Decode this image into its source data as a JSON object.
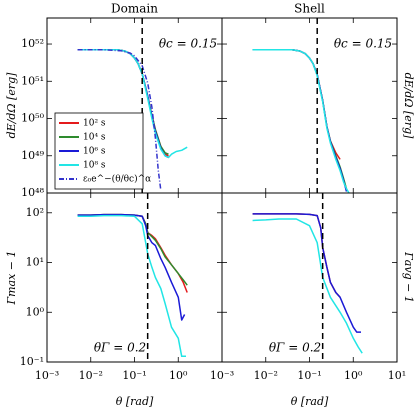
{
  "chart_data": [
    {
      "type": "line",
      "title": "Domain",
      "ylabel": "dE/dΩ [erg]",
      "log_x": true,
      "log_y": true,
      "xlim": [
        0.001,
        10
      ],
      "ylim": [
        1e+48,
        5e+52
      ],
      "xticks": [
        0.001,
        0.01,
        0.1,
        1,
        10
      ],
      "yticks": [
        {
          "value": 1e+48,
          "label": "10⁴⁸"
        },
        {
          "value": 1e+49,
          "label": "10⁴⁹"
        },
        {
          "value": 1e+50,
          "label": "10⁵⁰"
        },
        {
          "value": 1e+51,
          "label": "10⁵¹"
        },
        {
          "value": 1e+52,
          "label": "10⁵²"
        }
      ],
      "vline": 0.15,
      "annotation": "θc = 0.15",
      "legend": "lower left",
      "series": [
        {
          "name": "10² s",
          "color": "#e41a1c",
          "x": [
            0.005,
            0.01,
            0.02,
            0.04,
            0.06,
            0.08,
            0.1,
            0.12,
            0.15,
            0.2,
            0.25,
            0.3,
            0.4,
            0.5,
            0.6
          ],
          "values": [
            7e+51,
            7e+51,
            7e+51,
            7e+51,
            6.5e+51,
            5.5e+51,
            4.2e+51,
            3e+51,
            1.6e+51,
            4e+50,
            1.2e+50,
            5e+49,
            1.8e+49,
            1.1e+49,
            1e+49
          ]
        },
        {
          "name": "10⁴ s",
          "color": "#2e8b2e",
          "x": [
            0.005,
            0.01,
            0.02,
            0.04,
            0.06,
            0.08,
            0.1,
            0.12,
            0.15,
            0.2,
            0.25,
            0.3,
            0.4,
            0.5,
            0.6
          ],
          "values": [
            7e+51,
            7e+51,
            7e+51,
            7e+51,
            6.5e+51,
            5.5e+51,
            4.2e+51,
            3e+51,
            1.6e+51,
            4e+50,
            1.2e+50,
            5e+49,
            1.8e+49,
            1.2e+49,
            1.1e+49
          ]
        },
        {
          "name": "10⁶ s",
          "color": "#1a1ad6",
          "x": [
            0.005,
            0.01,
            0.02,
            0.04,
            0.06,
            0.08,
            0.1,
            0.12,
            0.15,
            0.2,
            0.25,
            0.3,
            0.4,
            0.5,
            0.6
          ],
          "values": [
            7e+51,
            7e+51,
            7e+51,
            7e+51,
            6.5e+51,
            5.5e+51,
            4.2e+51,
            3e+51,
            1.6e+51,
            4e+50,
            1.1e+50,
            4.5e+49,
            1.6e+49,
            1e+49,
            9e+48
          ]
        },
        {
          "name": "10⁸ s",
          "color": "#22e5e5",
          "x": [
            0.005,
            0.01,
            0.02,
            0.04,
            0.06,
            0.08,
            0.1,
            0.12,
            0.15,
            0.2,
            0.25,
            0.3,
            0.4,
            0.5,
            0.6,
            0.7,
            0.9,
            1.2,
            1.6
          ],
          "values": [
            7e+51,
            7e+51,
            7e+51,
            7e+51,
            6.5e+51,
            5.5e+51,
            4.2e+51,
            3e+51,
            1.6e+51,
            3.5e+50,
            1e+50,
            4e+49,
            1.5e+49,
            1e+49,
            9e+48,
            1.1e+49,
            1.3e+49,
            1.4e+49,
            1.7e+49
          ]
        },
        {
          "name": "ε₀e^−(θ/θc)^α",
          "color": "#3333cc",
          "style": "dashdot",
          "x": [
            0.005,
            0.02,
            0.05,
            0.08,
            0.1,
            0.15,
            0.2,
            0.25,
            0.3,
            0.35,
            0.4
          ],
          "values": [
            7e+51,
            7e+51,
            6.6e+51,
            5.7e+51,
            4.8e+51,
            2.6e+51,
            9e+50,
            2e+50,
            3e+49,
            4e+48,
            1.2e+48
          ]
        }
      ]
    },
    {
      "type": "line",
      "title": "Shell",
      "ylabel": "dE/dΩ [erg]",
      "log_x": true,
      "log_y": true,
      "xlim": [
        0.001,
        10
      ],
      "ylim": [
        1e+48,
        5e+52
      ],
      "xticks": [
        0.001,
        0.01,
        0.1,
        1,
        10
      ],
      "yticks": [
        1e+48,
        1e+49,
        1e+50,
        1e+51,
        1e+52
      ],
      "vline": 0.15,
      "annotation": "θc = 0.15",
      "series": [
        {
          "color": "#e41a1c",
          "x": [
            0.005,
            0.01,
            0.02,
            0.04,
            0.06,
            0.08,
            0.1,
            0.12,
            0.15,
            0.2,
            0.25,
            0.3,
            0.4,
            0.5
          ],
          "values": [
            7e+51,
            7e+51,
            7e+51,
            7e+51,
            6.5e+51,
            5.5e+51,
            4.2e+51,
            3e+51,
            1.5e+51,
            3e+50,
            6e+49,
            2.5e+49,
            1.2e+49,
            8e+48
          ]
        },
        {
          "color": "#2e8b2e",
          "x": [
            0.005,
            0.01,
            0.02,
            0.04,
            0.06,
            0.08,
            0.1,
            0.12,
            0.15,
            0.2,
            0.25,
            0.3,
            0.4,
            0.5,
            0.6,
            0.7
          ],
          "values": [
            7e+51,
            7e+51,
            7e+51,
            7e+51,
            6.5e+51,
            5.5e+51,
            4.2e+51,
            3e+51,
            1.5e+51,
            3e+50,
            6e+49,
            2.5e+49,
            1e+49,
            5e+48,
            2.5e+48,
            1.3e+48
          ]
        },
        {
          "color": "#1a1ad6",
          "x": [
            0.005,
            0.01,
            0.02,
            0.04,
            0.06,
            0.08,
            0.1,
            0.12,
            0.15,
            0.2,
            0.25,
            0.3,
            0.4,
            0.5,
            0.6,
            0.7
          ],
          "values": [
            7e+51,
            7e+51,
            7e+51,
            7e+51,
            6.5e+51,
            5.5e+51,
            4.2e+51,
            3e+51,
            1.5e+51,
            3e+50,
            6e+49,
            2.4e+49,
            9e+48,
            4.5e+48,
            2.2e+48,
            1.1e+48
          ]
        },
        {
          "color": "#22e5e5",
          "x": [
            0.005,
            0.01,
            0.02,
            0.04,
            0.06,
            0.08,
            0.1,
            0.12,
            0.15,
            0.2,
            0.25,
            0.3,
            0.4,
            0.5,
            0.6,
            0.7,
            0.8
          ],
          "values": [
            7e+51,
            7e+51,
            7e+51,
            7e+51,
            6.5e+51,
            5.5e+51,
            4.2e+51,
            3e+51,
            1.4e+51,
            2.8e+50,
            5.5e+49,
            2.2e+49,
            8e+48,
            4e+48,
            2e+48,
            1.3e+48,
            1e+48
          ]
        }
      ]
    },
    {
      "type": "line",
      "ylabel": "Γmax − 1",
      "xlabel": "θ [rad]",
      "log_x": true,
      "log_y": true,
      "xlim": [
        0.001,
        10
      ],
      "ylim": [
        0.1,
        250
      ],
      "xticks": [
        {
          "value": 0.001,
          "label": "10⁻³"
        },
        {
          "value": 0.01,
          "label": "10⁻²"
        },
        {
          "value": 0.1,
          "label": "10⁻¹"
        },
        {
          "value": 1,
          "label": "10⁰"
        }
      ],
      "yticks": [
        {
          "value": 0.1,
          "label": "10⁻¹"
        },
        {
          "value": 1,
          "label": "10⁰"
        },
        {
          "value": 10,
          "label": "10¹"
        },
        {
          "value": 100,
          "label": "10²"
        }
      ],
      "vline": 0.2,
      "annotation": "θΓ = 0.2",
      "series": [
        {
          "color": "#e41a1c",
          "x": [
            0.005,
            0.01,
            0.02,
            0.05,
            0.1,
            0.15,
            0.18,
            0.2,
            0.25,
            0.3,
            0.4,
            0.5,
            0.7,
            1,
            1.3,
            1.6
          ],
          "values": [
            90,
            90,
            92,
            92,
            90,
            85,
            60,
            40,
            35,
            30,
            20,
            14,
            9,
            6,
            4,
            2.5
          ]
        },
        {
          "color": "#2e8b2e",
          "x": [
            0.005,
            0.01,
            0.02,
            0.05,
            0.1,
            0.15,
            0.18,
            0.2,
            0.25,
            0.3,
            0.4,
            0.5,
            0.7,
            1,
            1.3,
            1.6
          ],
          "values": [
            90,
            90,
            92,
            92,
            90,
            85,
            60,
            40,
            33,
            28,
            19,
            13,
            9,
            6,
            4.5,
            3.5
          ]
        },
        {
          "color": "#1a1ad6",
          "x": [
            0.005,
            0.01,
            0.02,
            0.05,
            0.1,
            0.15,
            0.18,
            0.2,
            0.25,
            0.3,
            0.4,
            0.5,
            0.7,
            1,
            1.2,
            1.4
          ],
          "values": [
            90,
            90,
            92,
            92,
            90,
            85,
            55,
            35,
            25,
            22,
            12,
            8,
            4,
            2,
            0.7,
            0.9
          ]
        },
        {
          "color": "#22e5e5",
          "x": [
            0.005,
            0.01,
            0.02,
            0.05,
            0.1,
            0.15,
            0.18,
            0.2,
            0.25,
            0.3,
            0.4,
            0.5,
            0.7,
            1,
            1.2,
            1.5
          ],
          "values": [
            85,
            85,
            88,
            88,
            85,
            60,
            25,
            15,
            8,
            5,
            3,
            1.5,
            0.5,
            0.3,
            0.13,
            0.13
          ]
        }
      ]
    },
    {
      "type": "line",
      "ylabel": "Γavg − 1",
      "xlabel": "θ [rad]",
      "log_x": true,
      "log_y": true,
      "xlim": [
        0.001,
        10
      ],
      "ylim": [
        0.1,
        250
      ],
      "xticks": [
        {
          "value": 0.001,
          "label": "10⁻³"
        },
        {
          "value": 0.01,
          "label": "10⁻²"
        },
        {
          "value": 0.1,
          "label": "10⁻¹"
        },
        {
          "value": 1,
          "label": "10⁰"
        },
        {
          "value": 10,
          "label": "10¹"
        }
      ],
      "yticks": [
        0.1,
        1,
        10,
        100
      ],
      "vline": 0.2,
      "annotation": "θΓ = 0.2",
      "series": [
        {
          "color": "#e41a1c",
          "x": [
            0.005,
            0.01,
            0.02,
            0.05,
            0.1,
            0.15,
            0.18,
            0.2,
            0.25,
            0.3,
            0.4,
            0.5
          ],
          "values": [
            95,
            95,
            95,
            95,
            93,
            88,
            50,
            20,
            8,
            4,
            2.5,
            2
          ]
        },
        {
          "color": "#1a1ad6",
          "x": [
            0.005,
            0.01,
            0.02,
            0.05,
            0.1,
            0.15,
            0.18,
            0.2,
            0.25,
            0.3,
            0.4,
            0.5,
            0.7,
            1,
            1.2,
            1.5
          ],
          "values": [
            95,
            95,
            95,
            95,
            93,
            88,
            50,
            20,
            8,
            4,
            2.5,
            2,
            1,
            0.5,
            0.4,
            0.4
          ]
        },
        {
          "color": "#22e5e5",
          "x": [
            0.005,
            0.01,
            0.02,
            0.05,
            0.1,
            0.15,
            0.2,
            0.3,
            0.5,
            0.7,
            1,
            1.3,
            1.6
          ],
          "values": [
            70,
            72,
            75,
            75,
            55,
            25,
            5,
            2,
            1,
            0.6,
            0.3,
            0.2,
            0.15
          ]
        }
      ]
    }
  ]
}
